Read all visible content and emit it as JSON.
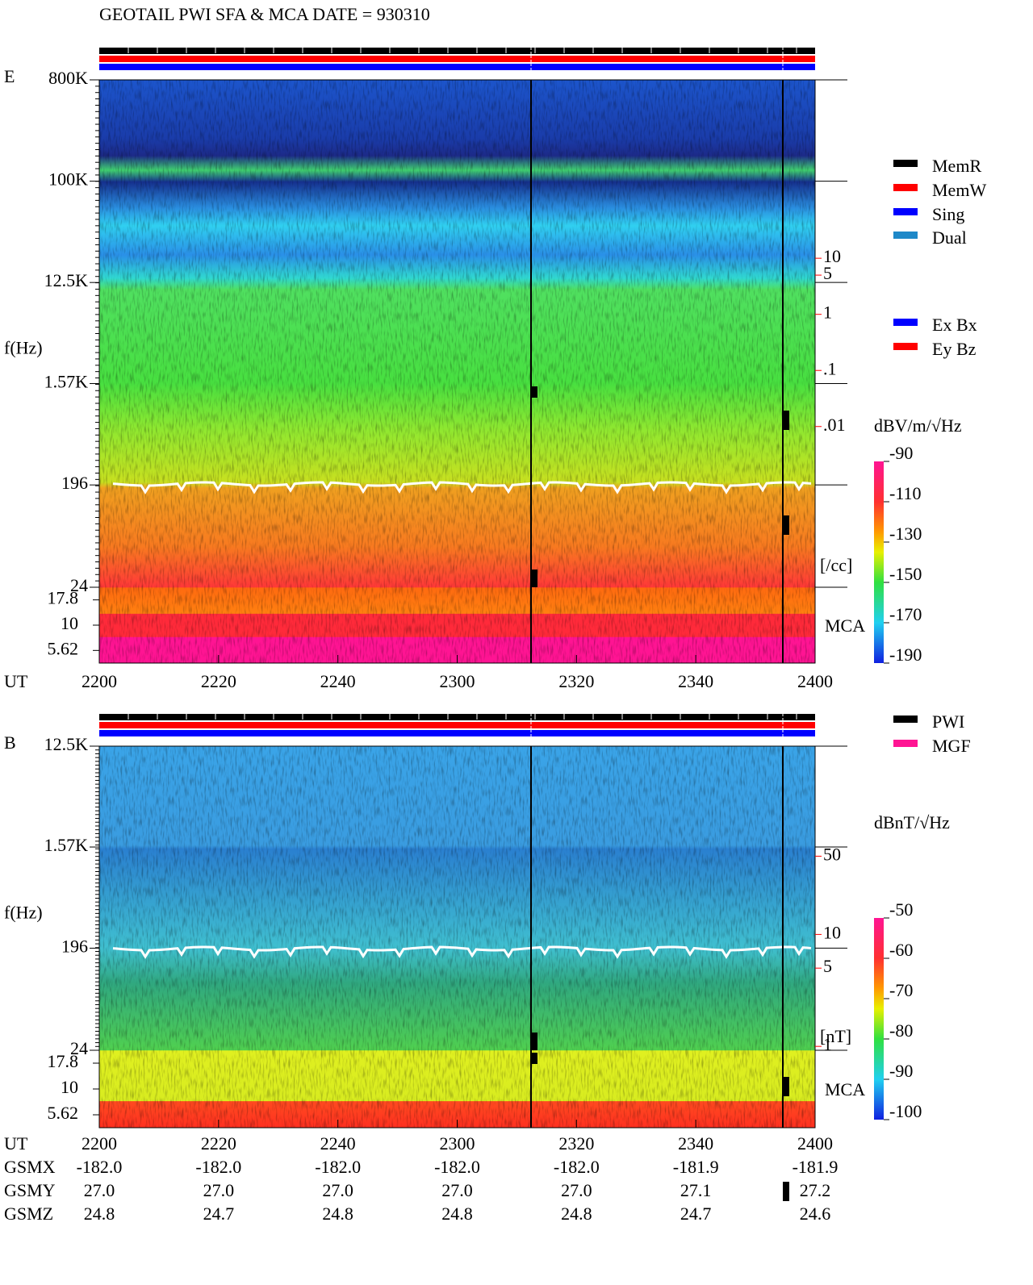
{
  "header": {
    "title": "GEOTAIL  PWI SFA & MCA   DATE = 930310"
  },
  "chart_data": [
    {
      "type": "spectrogram",
      "panel_label": "E",
      "y_label": "f(Hz)",
      "x_label": "UT",
      "yscale": "log",
      "ylim": [
        24,
        800000
      ],
      "yticks": [
        {
          "value": 800000,
          "label": "800K"
        },
        {
          "value": 100000,
          "label": "100K"
        },
        {
          "value": 12500,
          "label": "12.5K"
        },
        {
          "value": 1570,
          "label": "1.57K"
        },
        196,
        24
      ],
      "mca_label": "MCA",
      "mca_ticks": [
        17.8,
        10,
        5.62
      ],
      "x": [
        "2200",
        "2220",
        "2240",
        "2300",
        "2320",
        "2340",
        "2400"
      ],
      "right_axis": {
        "ticks": [
          10,
          5,
          1,
          {
            "value": 0.1,
            "label": ".1"
          },
          {
            "value": 0.01,
            "label": ".01"
          }
        ],
        "unit": "[/cc]",
        "color": "#ff0000"
      },
      "colorbar": {
        "label": "dBV/m/√Hz",
        "lim": [
          -190,
          -90
        ],
        "ticks": [
          -90,
          -110,
          -130,
          -150,
          -170,
          -190
        ]
      },
      "legend_groups": [
        [
          {
            "name": "MemR",
            "color": "#000000"
          },
          {
            "name": "MemW",
            "color": "#ff0000"
          },
          {
            "name": "Sing",
            "color": "#0000ff"
          },
          {
            "name": "Dual",
            "color": "#1e88c8"
          }
        ],
        [
          {
            "name": "Ex Bx",
            "color": "#0000ff"
          },
          {
            "name": "Ey Bz",
            "color": "#ff0000"
          }
        ]
      ]
    },
    {
      "type": "spectrogram",
      "panel_label": "B",
      "y_label": "f(Hz)",
      "x_label": "UT",
      "yscale": "log",
      "ylim": [
        24,
        12500
      ],
      "yticks": [
        {
          "value": 12500,
          "label": "12.5K"
        },
        {
          "value": 1570,
          "label": "1.57K"
        },
        196,
        24
      ],
      "mca_label": "MCA",
      "mca_ticks": [
        17.8,
        10,
        5.62
      ],
      "x": [
        "2200",
        "2220",
        "2240",
        "2300",
        "2320",
        "2340",
        "2400"
      ],
      "right_axis": {
        "ticks": [
          50,
          10,
          5,
          1
        ],
        "unit": "[nT]",
        "color": "#ff0000"
      },
      "colorbar": {
        "label": "dBnT/√Hz",
        "lim": [
          -100,
          -50
        ],
        "ticks": [
          -50,
          -60,
          -70,
          -80,
          -90,
          -100
        ]
      },
      "legend_groups": [
        [
          {
            "name": "PWI",
            "color": "#000000"
          },
          {
            "name": "MGF",
            "color": "#ff1493"
          }
        ]
      ]
    }
  ],
  "orbit": {
    "rows": [
      {
        "label": "GSMX",
        "values": [
          "-182.0",
          "-182.0",
          "-182.0",
          "-182.0",
          "-182.0",
          "-181.9",
          "-181.9"
        ]
      },
      {
        "label": "GSMY",
        "values": [
          "27.0",
          "27.0",
          "27.0",
          "27.0",
          "27.0",
          "27.1",
          "27.2"
        ]
      },
      {
        "label": "GSMZ",
        "values": [
          "24.8",
          "24.7",
          "24.8",
          "24.8",
          "24.8",
          "24.7",
          "24.6"
        ]
      }
    ]
  }
}
